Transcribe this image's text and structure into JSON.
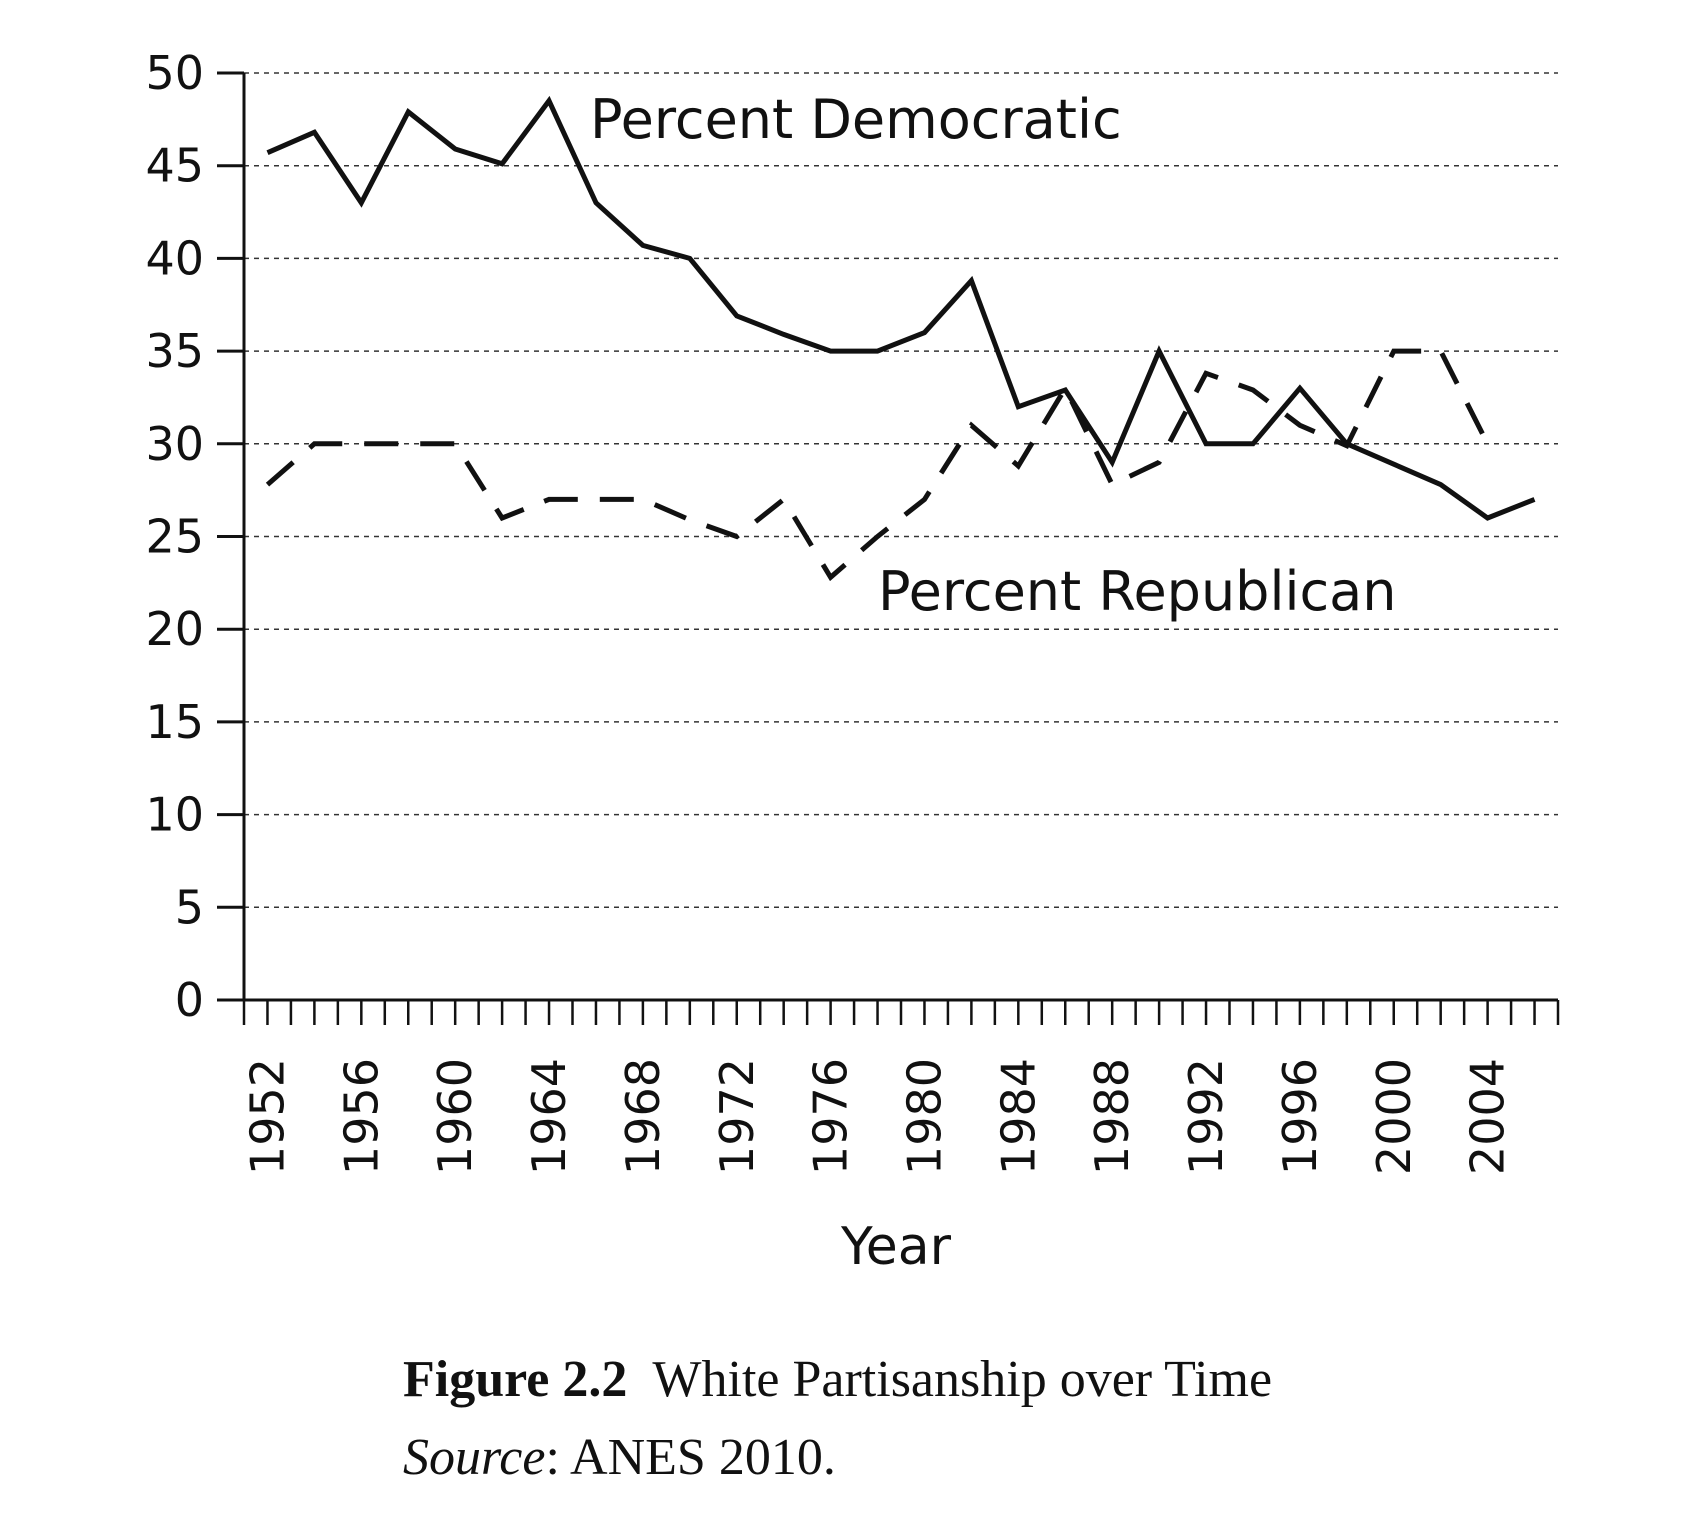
{
  "chart_data": {
    "type": "line",
    "xlabel": "Year",
    "ylabel": "",
    "ylim": [
      0,
      50
    ],
    "yticks": [
      0,
      5,
      10,
      15,
      20,
      25,
      30,
      35,
      40,
      45,
      50
    ],
    "xlim": [
      1951,
      2007
    ],
    "xtick_labels": [
      "1952",
      "1956",
      "1960",
      "1964",
      "1968",
      "1972",
      "1976",
      "1980",
      "1984",
      "1988",
      "1992",
      "1996",
      "2000",
      "2004"
    ],
    "grid": "horizontal dashed",
    "series": [
      {
        "name": "Percent Democratic",
        "style": "solid",
        "color": "#111111",
        "x": [
          1952,
          1954,
          1956,
          1958,
          1960,
          1962,
          1964,
          1966,
          1968,
          1970,
          1972,
          1974,
          1976,
          1978,
          1980,
          1982,
          1984,
          1986,
          1988,
          1990,
          1992,
          1994,
          1996,
          1998,
          2000,
          2002,
          2004,
          2006
        ],
        "values": [
          45.7,
          46.8,
          43,
          47.9,
          45.9,
          45.1,
          48.5,
          43,
          40.7,
          40,
          36.9,
          35.9,
          35,
          35,
          36,
          38.8,
          32,
          32.9,
          29,
          35,
          30,
          30,
          33,
          30,
          28.9,
          27.8,
          26,
          27
        ]
      },
      {
        "name": "Percent Republican",
        "style": "dashed",
        "color": "#111111",
        "x": [
          1952,
          1954,
          1956,
          1958,
          1960,
          1962,
          1964,
          1966,
          1968,
          1970,
          1972,
          1974,
          1976,
          1978,
          1980,
          1982,
          1984,
          1986,
          1988,
          1990,
          1992,
          1994,
          1996,
          1998,
          2000,
          2002,
          2004
        ],
        "values": [
          27.8,
          30,
          30,
          30,
          30,
          26,
          27,
          27,
          27,
          25.9,
          25,
          27,
          22.8,
          25,
          27,
          31,
          28.8,
          33,
          27.8,
          29,
          33.8,
          32.9,
          31,
          29.9,
          35,
          35,
          30
        ]
      }
    ],
    "annotations": [
      "Percent Democratic",
      "Percent Republican"
    ]
  },
  "caption": {
    "figure_label": "Figure 2.2",
    "figure_title": "White Partisanship over Time",
    "source_label": "Source",
    "source_text": ": ANES 2010."
  }
}
